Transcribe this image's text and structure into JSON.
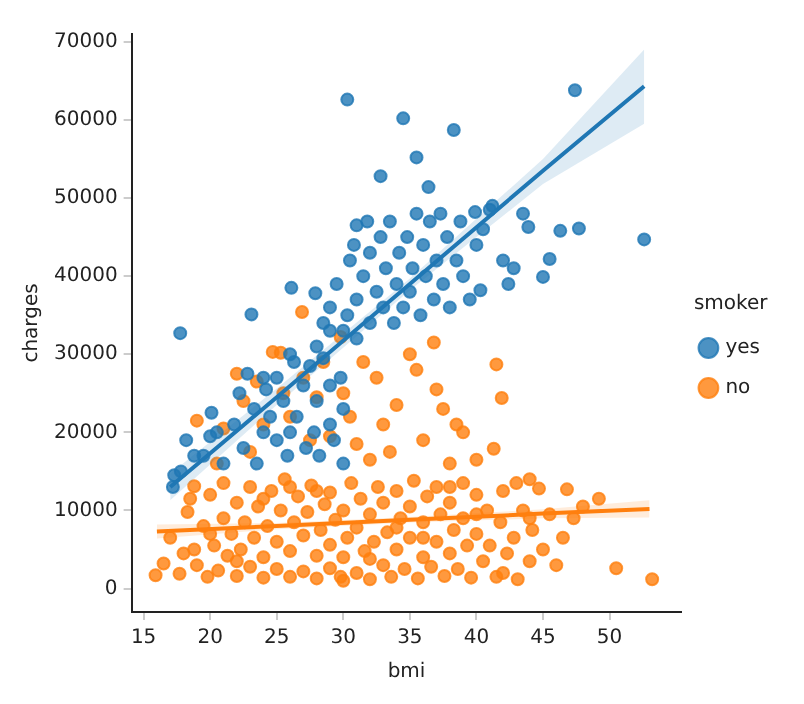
{
  "chart_data": {
    "type": "scatter",
    "xlabel": "bmi",
    "ylabel": "charges",
    "legend_title": "smoker",
    "legend": "right",
    "grid": false,
    "marker": "circle",
    "xlim": [
      14.1,
      55.4
    ],
    "ylim": [
      -3000,
      71000
    ],
    "xticks": [
      15,
      20,
      25,
      30,
      35,
      40,
      45,
      50
    ],
    "yticks": [
      0,
      10000,
      20000,
      30000,
      40000,
      50000,
      60000,
      70000
    ],
    "series": [
      {
        "name": "yes",
        "color": "#1f77b4",
        "x": [
          17.3,
          17.8,
          17.2,
          18.2,
          18.8,
          19.5,
          20,
          20.1,
          20.5,
          21,
          21.8,
          22.5,
          22.2,
          22.8,
          23.3,
          23.5,
          24,
          24.2,
          24.5,
          25,
          25,
          25.5,
          25.8,
          26,
          26.3,
          26.5,
          27,
          27.2,
          27.5,
          27.8,
          28,
          28.2,
          28.5,
          29,
          29,
          29.3,
          29.8,
          30,
          30,
          28.5,
          29,
          29.5,
          30,
          30.3,
          30.5,
          30.8,
          31,
          31,
          31.5,
          31.8,
          32,
          32,
          32.5,
          32.8,
          33,
          33.2,
          33.5,
          33.8,
          34,
          34.2,
          34.5,
          34.8,
          35,
          35.2,
          35.5,
          35.8,
          36,
          36.2,
          36.5,
          36.8,
          37,
          37.3,
          37.5,
          37.8,
          38,
          38.5,
          38.8,
          39,
          39.5,
          40,
          40.3,
          40.5,
          41,
          41.2,
          42,
          42.4,
          42.8,
          43.5,
          43.9,
          45,
          45.5,
          46.3,
          47.7,
          52.6,
          47.4,
          34.5,
          38.3,
          35.5,
          32.8,
          30.3,
          36.4,
          39.9,
          17.75,
          23.1,
          26.1,
          27.9,
          24,
          26,
          28,
          29,
          31
        ],
        "values": [
          14500,
          15000,
          13000,
          19000,
          17000,
          17000,
          19500,
          22500,
          20000,
          16000,
          21000,
          18000,
          25000,
          27500,
          23000,
          16000,
          20000,
          25500,
          22000,
          19000,
          27000,
          24000,
          17000,
          20000,
          29000,
          22000,
          26000,
          18000,
          28500,
          20000,
          24000,
          17000,
          29500,
          21000,
          26000,
          19000,
          27000,
          23000,
          16000,
          34000,
          36000,
          39000,
          33000,
          35000,
          42000,
          44000,
          37000,
          46500,
          40000,
          47000,
          34000,
          43000,
          38000,
          45000,
          36000,
          41000,
          47000,
          34000,
          39000,
          43000,
          36000,
          45000,
          38000,
          41000,
          48000,
          35000,
          44000,
          40000,
          47000,
          37000,
          42000,
          48000,
          39000,
          45000,
          36000,
          42000,
          47000,
          40000,
          37000,
          44000,
          38200,
          46000,
          48500,
          49000,
          42000,
          39000,
          41000,
          48000,
          46300,
          39900,
          42200,
          45800,
          46100,
          44700,
          63800,
          60200,
          58700,
          55200,
          52800,
          62600,
          51400,
          48200,
          32700,
          35100,
          38500,
          37800,
          27000,
          30000,
          31000,
          33000,
          32000
        ]
      },
      {
        "name": "no",
        "color": "#ff7f0e",
        "x": [
          18.8,
          19,
          20.5,
          21,
          22,
          22.5,
          23,
          23.5,
          24,
          24.7,
          25.3,
          25.5,
          26,
          26.9,
          27,
          27.5,
          28,
          28.5,
          29,
          29.8,
          30,
          30.5,
          31,
          31.5,
          32,
          32.5,
          33,
          33.5,
          34,
          35,
          35.5,
          36,
          36.8,
          37,
          37.5,
          38,
          38.5,
          39,
          40,
          41.3,
          41.5,
          41.9,
          43,
          44,
          15.9,
          16.5,
          17,
          17.7,
          18,
          18.3,
          18.5,
          19,
          19.5,
          19.8,
          20,
          20.3,
          20.6,
          21,
          21,
          21.3,
          21.6,
          22,
          22,
          22.3,
          22.6,
          23,
          23,
          23.3,
          23.6,
          24,
          24,
          24.3,
          24.6,
          25,
          25,
          25.3,
          25.6,
          26,
          26,
          26.3,
          26.6,
          27,
          27,
          27.3,
          27.6,
          28,
          28,
          28.3,
          28.6,
          29,
          29,
          29,
          29.4,
          29.8,
          30,
          30,
          30.3,
          30.6,
          31,
          31,
          31.3,
          31.6,
          32,
          32,
          32.3,
          32.6,
          33,
          33,
          33.3,
          33.6,
          34,
          34,
          34.3,
          34.6,
          35,
          35,
          35.3,
          35.6,
          36,
          36,
          36.3,
          36.6,
          37,
          37,
          37.3,
          37.6,
          38,
          38,
          38.3,
          38.6,
          39,
          39,
          39.3,
          39.6,
          40,
          40,
          40.5,
          40.8,
          41,
          41.5,
          41.8,
          42,
          42.3,
          42.8,
          43.1,
          43.5,
          44,
          44.2,
          44.7,
          45,
          45.5,
          46,
          46.5,
          46.8,
          47.3,
          48,
          49.2,
          50.5,
          53.2,
          18.8,
          20,
          22,
          24,
          26,
          28,
          30,
          32,
          34,
          36,
          38,
          40,
          42,
          44
        ],
        "values": [
          13100,
          21500,
          16000,
          20500,
          27500,
          24000,
          17500,
          26500,
          21000,
          30300,
          30200,
          25000,
          22000,
          35400,
          27000,
          19000,
          24500,
          29000,
          19500,
          32200,
          25000,
          22000,
          18500,
          29000,
          16500,
          27000,
          21000,
          17500,
          23500,
          30000,
          28000,
          19000,
          31500,
          25500,
          23000,
          16000,
          21000,
          20000,
          16500,
          17900,
          28700,
          24400,
          13500,
          14000,
          1700,
          3200,
          6500,
          1900,
          4500,
          9800,
          11500,
          3000,
          8000,
          1500,
          12000,
          5500,
          2300,
          9000,
          13500,
          4200,
          7000,
          1600,
          11000,
          5000,
          8500,
          2800,
          13000,
          6500,
          10500,
          1400,
          4000,
          8000,
          12500,
          2500,
          6000,
          10000,
          14000,
          1500,
          4800,
          8500,
          11800,
          2200,
          6800,
          9800,
          13200,
          1300,
          4200,
          7500,
          10800,
          2600,
          5600,
          12300,
          8800,
          1500,
          4000,
          10000,
          6500,
          13500,
          2000,
          7800,
          11500,
          4800,
          1200,
          9500,
          6000,
          13000,
          3000,
          11000,
          7200,
          1500,
          5000,
          12500,
          9000,
          2500,
          6500,
          10500,
          13800,
          1300,
          4000,
          8500,
          11800,
          2800,
          6000,
          13000,
          9500,
          1600,
          4500,
          11000,
          7500,
          2500,
          9000,
          13500,
          5500,
          1400,
          7000,
          12000,
          3500,
          10000,
          5500,
          1500,
          8500,
          12500,
          4500,
          6500,
          1200,
          10000,
          3500,
          7500,
          12800,
          5000,
          9500,
          3000,
          6500,
          12700,
          9000,
          10500,
          11500,
          2600,
          1200,
          5000,
          7000,
          3500,
          11500,
          13000,
          12500,
          1000,
          3800,
          7800,
          6500,
          13000,
          9500,
          2000,
          9000
        ]
      },
      {
        "type": "line",
        "marker": "none",
        "color": "#1f77b4",
        "x": [
          17,
          25,
          35,
          45,
          52.6
        ],
        "values": [
          13000,
          24500,
          39000,
          53500,
          64300
        ],
        "lower": [
          11300,
          23500,
          38200,
          51800,
          59500
        ],
        "upper": [
          14700,
          25600,
          39700,
          55000,
          69000
        ]
      },
      {
        "type": "line",
        "marker": "none",
        "color": "#ff7f0e",
        "x": [
          16,
          25,
          35,
          45,
          53
        ],
        "values": [
          7300,
          8000,
          8800,
          9600,
          10200
        ],
        "lower": [
          6400,
          7600,
          8450,
          9000,
          9100
        ],
        "upper": [
          8200,
          8400,
          9150,
          10150,
          11300
        ]
      }
    ]
  }
}
